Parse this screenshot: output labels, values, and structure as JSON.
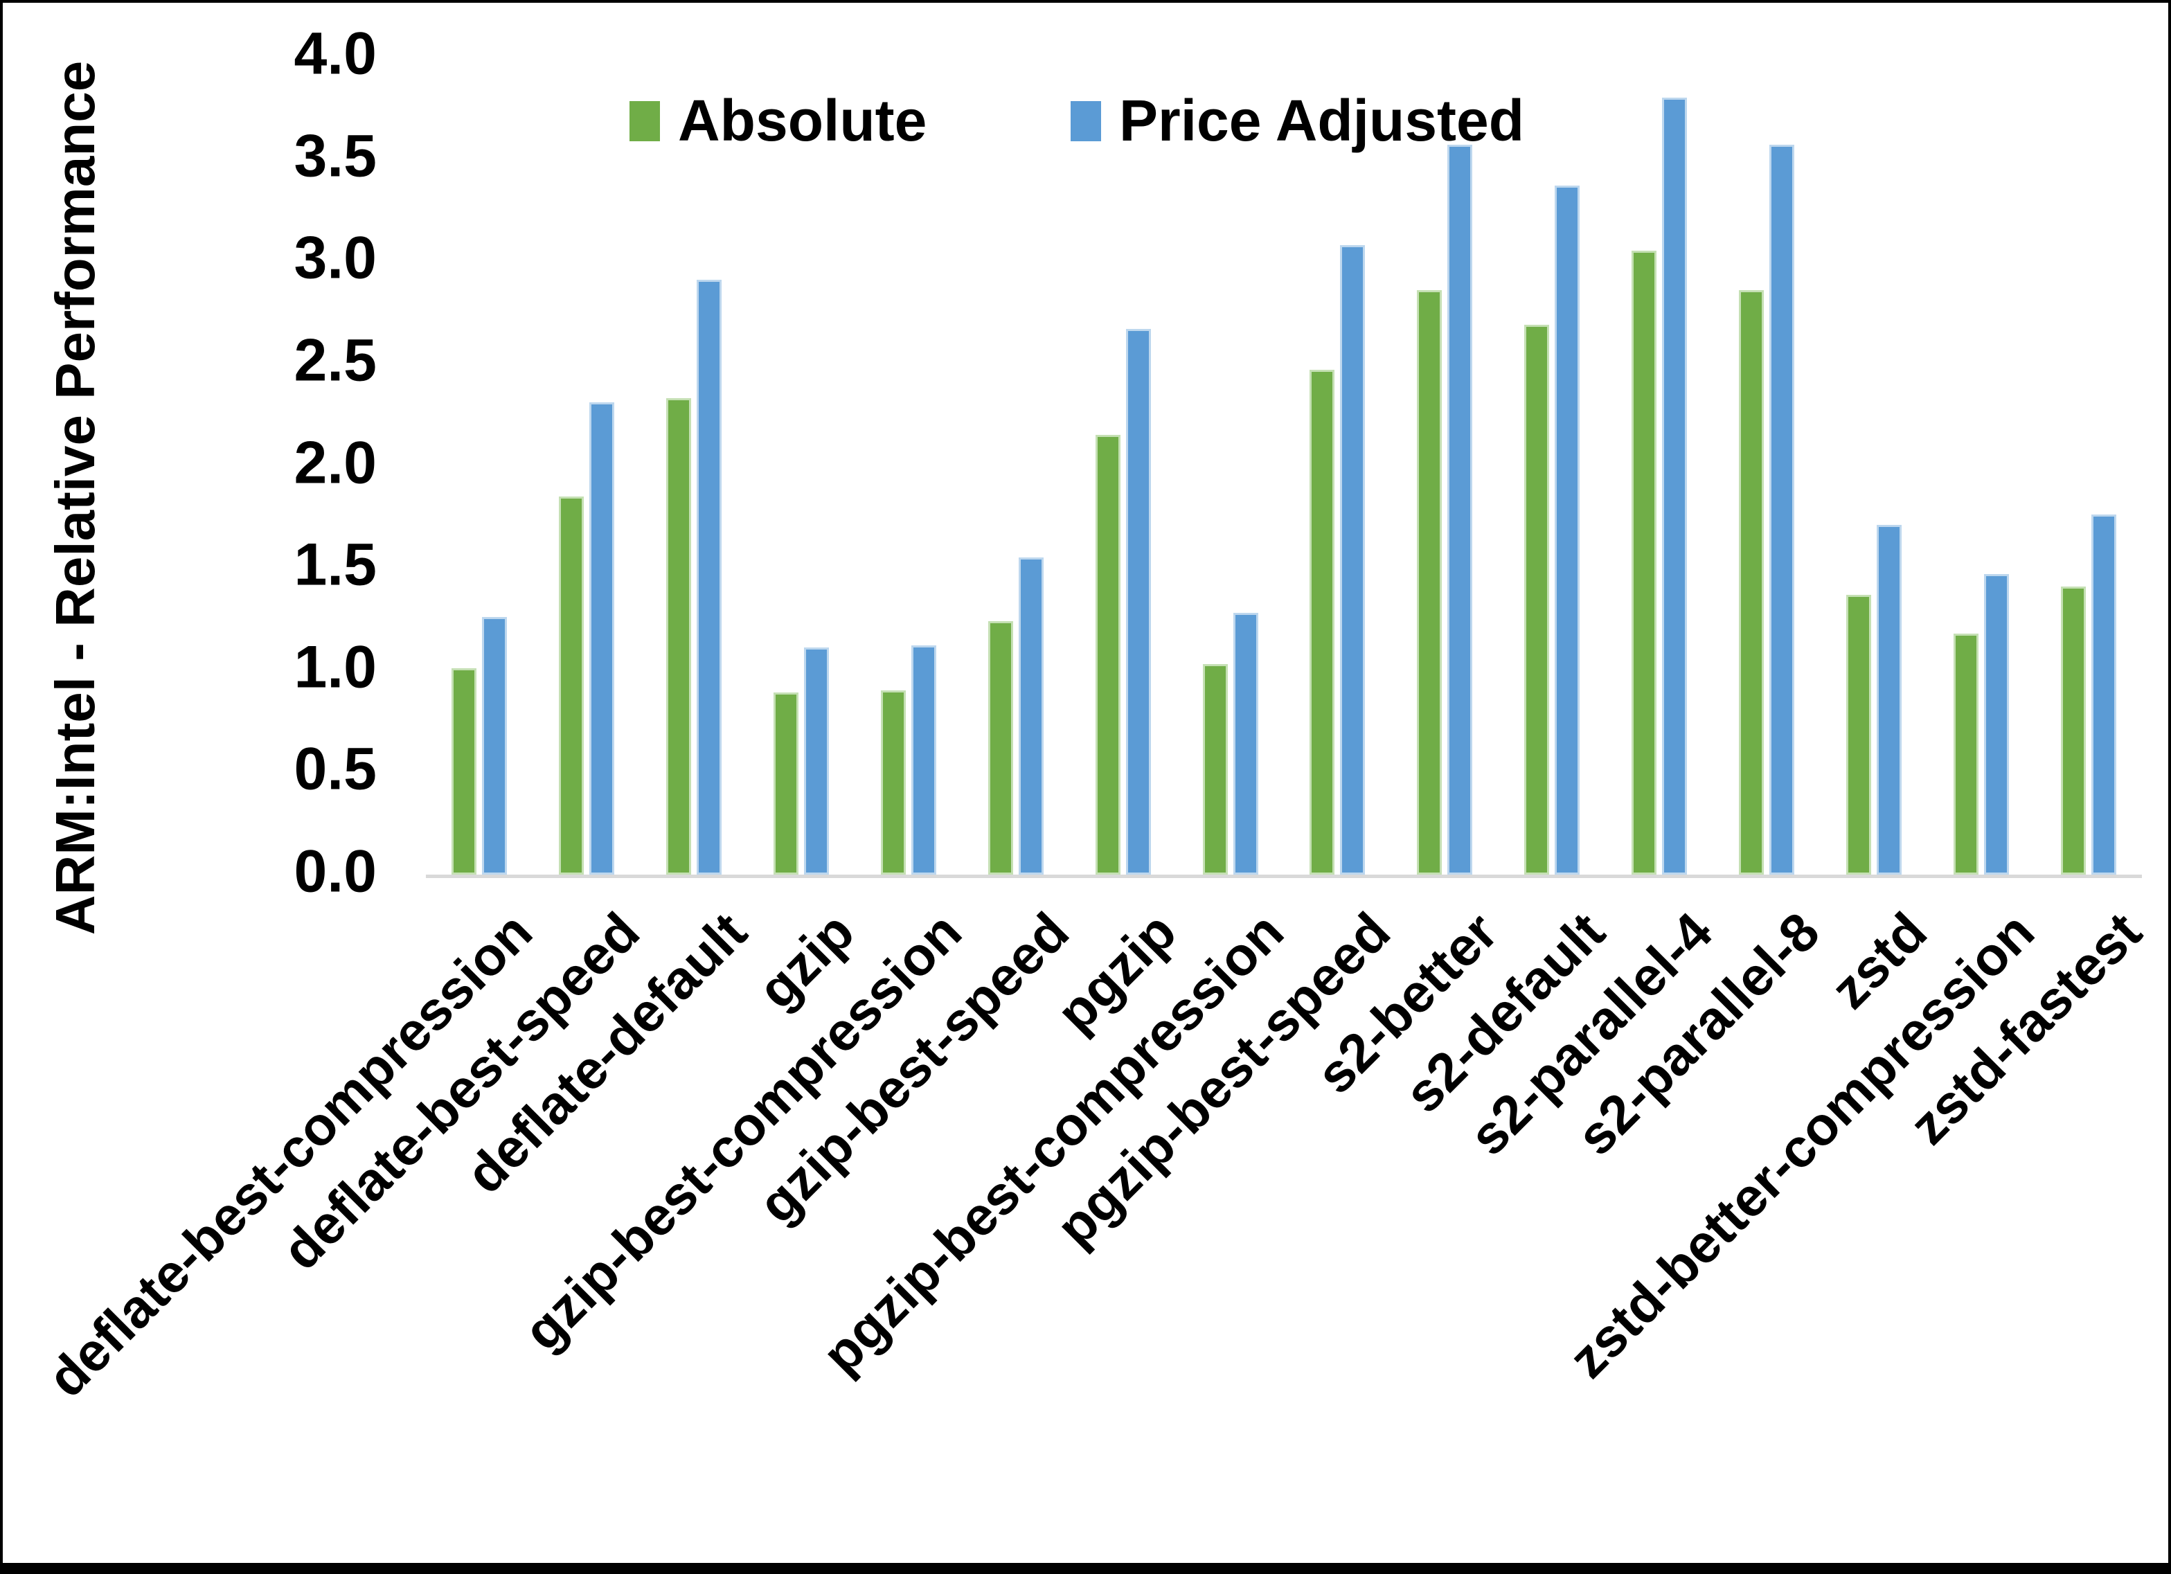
{
  "figure": {
    "background_color": "#FFFFFF",
    "border_color": "#000000"
  },
  "chart_data": {
    "type": "bar",
    "title": "",
    "xlabel": "",
    "ylabel": "ARM:Intel - Relative Performance",
    "ylim": [
      0,
      4.0
    ],
    "ytick_step": 0.5,
    "yticks": [
      "0.0",
      "0.5",
      "1.0",
      "1.5",
      "2.0",
      "2.5",
      "3.0",
      "3.5",
      "4.0"
    ],
    "grid": false,
    "legend_position": "top-center-inside",
    "axis_line_color": "#D9D9D9",
    "categories": [
      "deflate-best-compression",
      "deflate-best-speed",
      "deflate-default",
      "gzip",
      "gzip-best-compression",
      "gzip-best-speed",
      "pgzip",
      "pgzip-best-compression",
      "pgzip-best-speed",
      "s2-better",
      "s2-default",
      "s2-parallel-4",
      "s2-parallel-8",
      "zstd",
      "zstd-better-compression",
      "zstd-fastest"
    ],
    "series": [
      {
        "name": "Absolute",
        "color": "#70AD47",
        "edge_color": "#C5E0B4",
        "values": [
          1.01,
          1.85,
          2.33,
          0.89,
          0.9,
          1.24,
          2.15,
          1.03,
          2.47,
          2.86,
          2.69,
          3.05,
          2.86,
          1.37,
          1.18,
          1.41
        ]
      },
      {
        "name": "Price Adjusted",
        "color": "#5B9BD5",
        "edge_color": "#BDD7EE",
        "values": [
          1.26,
          2.31,
          2.91,
          1.11,
          1.12,
          1.55,
          2.67,
          1.28,
          3.08,
          3.57,
          3.37,
          3.8,
          3.57,
          1.71,
          1.47,
          1.76
        ]
      }
    ]
  }
}
